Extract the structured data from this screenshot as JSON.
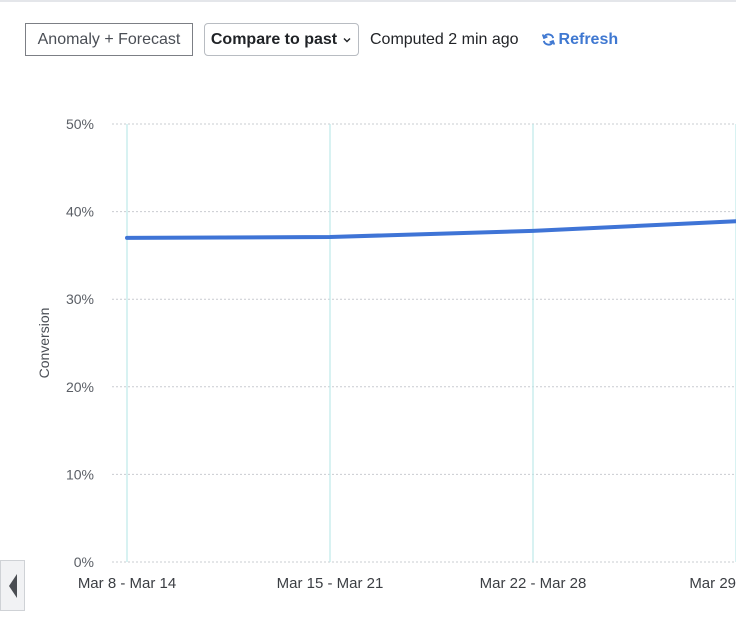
{
  "toolbar": {
    "anomaly_label": "Anomaly + Forecast",
    "compare_label": "Compare to past",
    "computed_text": "Computed 2 min ago",
    "refresh_label": "Refresh"
  },
  "icons": {
    "compare_dropdown": "chevron-down-icon",
    "refresh": "refresh-icon",
    "scroll_left": "caret-left-icon"
  },
  "colors": {
    "series_line": "#3f74d6",
    "refresh_link": "#3f78d1",
    "vertical_gridline": "#bfe8ea",
    "horizontal_gridline": "#c9ccd1"
  },
  "chart_data": {
    "type": "line",
    "ylabel": "Conversion",
    "y_ticks": [
      "0%",
      "10%",
      "20%",
      "30%",
      "40%",
      "50%"
    ],
    "ylim": [
      0,
      50
    ],
    "categories": [
      "Mar 8 - Mar 14",
      "Mar 15 - Mar 21",
      "Mar 22 - Mar 28",
      "Mar 29"
    ],
    "series": [
      {
        "values": [
          37.0,
          37.1,
          37.8,
          38.9
        ]
      }
    ],
    "grid": true
  }
}
